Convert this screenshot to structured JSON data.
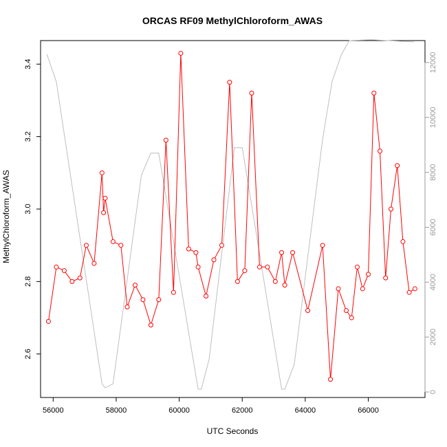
{
  "chart_data": {
    "type": "line",
    "title": "ORCAS RF09 MethylChloroform_AWAS",
    "xlabel": "UTC Seconds",
    "ylabel": "MethylChloroform_AWAS",
    "xlim": [
      55600,
      67800
    ],
    "ylim": [
      2.48,
      3.465
    ],
    "y2lim": [
      -200,
      12800
    ],
    "x_ticks": [
      56000,
      58000,
      60000,
      62000,
      64000,
      66000
    ],
    "y_ticks": [
      2.6,
      2.8,
      3.0,
      3.2,
      3.4
    ],
    "y2_ticks": [
      0,
      2000,
      4000,
      6000,
      8000,
      10000,
      12000
    ],
    "series": [
      {
        "axis": "left",
        "color": "#ff0000",
        "marker": "circle-open",
        "x": [
          55850,
          56100,
          56350,
          56600,
          56850,
          57050,
          57300,
          57550,
          57600,
          57650,
          57900,
          58150,
          58350,
          58600,
          58850,
          59100,
          59350,
          59580,
          59820,
          60050,
          60300,
          60530,
          60600,
          60850,
          61100,
          61350,
          61600,
          61850,
          62080,
          62300,
          62550,
          62800,
          63050,
          63250,
          63350,
          63600,
          64080,
          64550,
          64800,
          65050,
          65300,
          65470,
          65650,
          65820,
          66000,
          66180,
          66370,
          66550,
          66720,
          66920,
          67100,
          67300,
          67480
        ],
        "values": [
          2.69,
          2.84,
          2.83,
          2.8,
          2.81,
          2.9,
          2.85,
          3.1,
          2.99,
          3.03,
          2.91,
          2.9,
          2.73,
          2.79,
          2.75,
          2.68,
          2.75,
          3.19,
          2.77,
          3.43,
          2.89,
          2.88,
          2.84,
          2.76,
          2.86,
          2.9,
          3.35,
          2.8,
          2.83,
          3.32,
          2.84,
          2.84,
          2.8,
          2.88,
          2.79,
          2.88,
          2.72,
          2.9,
          2.53,
          2.78,
          2.72,
          2.7,
          2.84,
          2.78,
          2.82,
          3.32,
          3.16,
          2.81,
          3.0,
          3.12,
          2.91,
          2.77,
          2.78
        ]
      },
      {
        "axis": "right",
        "color": "#bebebe",
        "marker": "none",
        "x": [
          55800,
          56100,
          57550,
          57650,
          57900,
          58800,
          59100,
          59350,
          60600,
          60700,
          60950,
          61750,
          62000,
          63250,
          63350,
          63650,
          64550,
          64850,
          65150,
          65400,
          66100,
          67450
        ],
        "values": [
          12300,
          11300,
          300,
          150,
          300,
          7900,
          8700,
          8700,
          100,
          100,
          1200,
          8900,
          8900,
          100,
          100,
          1000,
          9200,
          11300,
          12300,
          12800,
          12830,
          12750
        ]
      }
    ]
  }
}
